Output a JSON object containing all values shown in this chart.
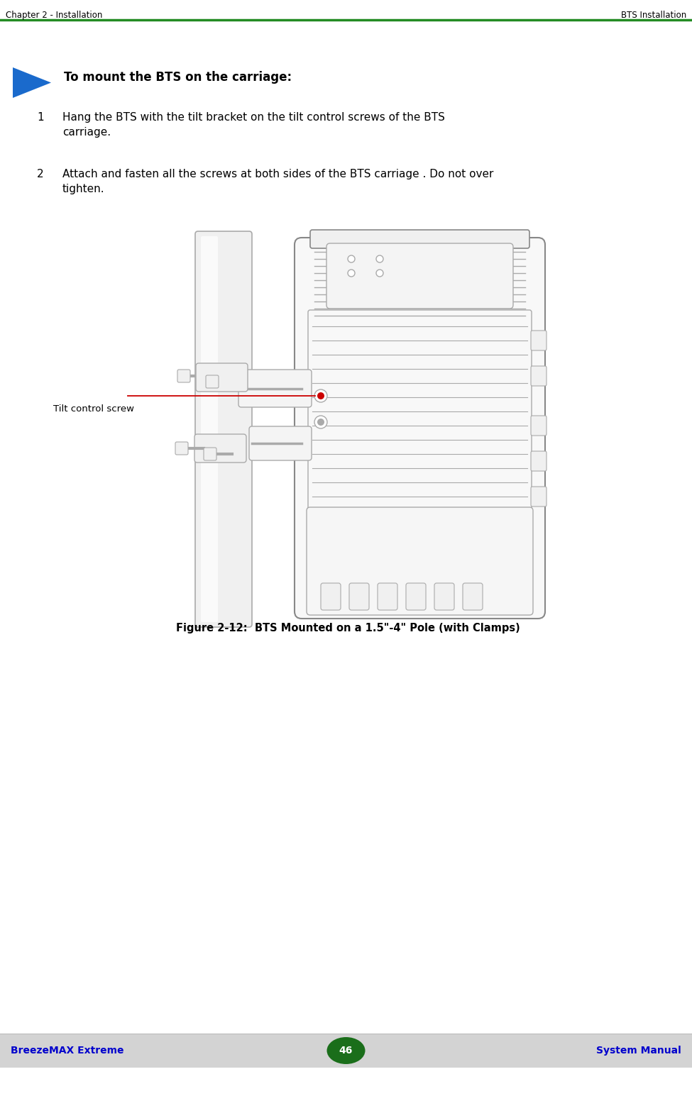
{
  "header_left": "Chapter 2 - Installation",
  "header_right": "BTS Installation",
  "header_line_color": "#228B22",
  "header_text_color": "#000000",
  "section_title": "To mount the BTS on the carriage:",
  "steps": [
    {
      "number": "1",
      "text": "Hang the BTS with the tilt bracket on the tilt control screws of the BTS\ncarriage."
    },
    {
      "number": "2",
      "text": "Attach and fasten all the screws at both sides of the BTS carriage . Do not over\ntighten."
    }
  ],
  "figure_caption": "Figure 2-12:  BTS Mounted on a 1.5\"-4\" Pole (with Clamps)",
  "callout_label": "Tilt control screw",
  "footer_left": "BreezeMAX Extreme",
  "footer_center": "46",
  "footer_right": "System Manual",
  "footer_bg": "#d3d3d3",
  "footer_text_color": "#0000cc",
  "page_bg": "#ffffff",
  "line_color": "#aaaaaa",
  "dark_line": "#888888",
  "red_callout": "#cc0000"
}
